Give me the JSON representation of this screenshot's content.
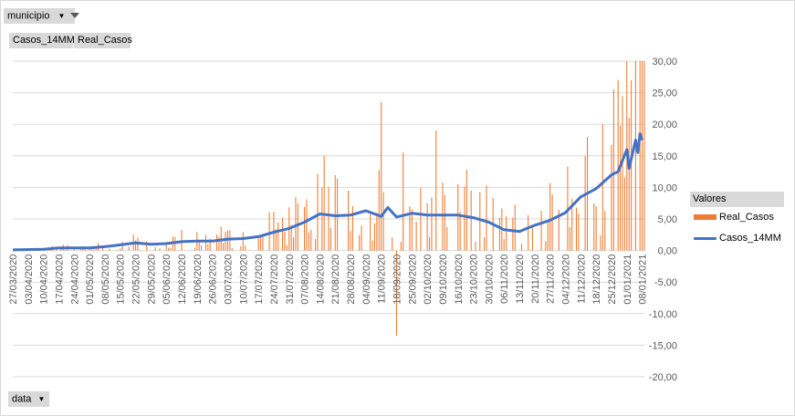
{
  "filters": {
    "municipio_label": "municipio",
    "data_label": "data"
  },
  "value_fields": [
    "Casos_14MM",
    "Real_Casos"
  ],
  "legend": {
    "title": "Valores",
    "items": [
      {
        "label": "Real_Casos",
        "color": "#ED7D31"
      },
      {
        "label": "Casos_14MM",
        "color": "#4472C4"
      }
    ]
  },
  "colors": {
    "bars": "#ED7D31",
    "line": "#4472C4",
    "grid": "#d9d9d9"
  },
  "chart_data": {
    "type": "bar+line",
    "title": "",
    "xlabel": "",
    "ylabel": "",
    "ylim": [
      -20,
      30
    ],
    "yticks": [
      "-20,00",
      "-15,00",
      "-10,00",
      "-5,00",
      "0,00",
      "5,00",
      "10,00",
      "15,00",
      "20,00",
      "25,00",
      "30,00"
    ],
    "ytick_values": [
      -20,
      -15,
      -10,
      -5,
      0,
      5,
      10,
      15,
      20,
      25,
      30
    ],
    "x_start": "27/03/2020",
    "x_end": "09/01/2021",
    "xticks": [
      "27/03/2020",
      "03/04/2020",
      "10/04/2020",
      "17/04/2020",
      "24/04/2020",
      "01/05/2020",
      "08/05/2020",
      "15/05/2020",
      "22/05/2020",
      "29/05/2020",
      "05/06/2020",
      "12/06/2020",
      "19/06/2020",
      "26/06/2020",
      "03/07/2020",
      "10/07/2020",
      "17/07/2020",
      "24/07/2020",
      "31/07/2020",
      "07/08/2020",
      "14/08/2020",
      "21/08/2020",
      "28/08/2020",
      "04/09/2020",
      "11/09/2020",
      "18/09/2020",
      "25/09/2020",
      "02/10/2020",
      "09/10/2020",
      "16/10/2020",
      "23/10/2020",
      "30/10/2020",
      "06/11/2020",
      "13/11/2020",
      "20/11/2020",
      "27/11/2020",
      "04/12/2020",
      "11/12/2020",
      "18/12/2020",
      "25/12/2020",
      "01/01/2021",
      "08/01/2021"
    ],
    "bar_series": {
      "name": "Real_Casos",
      "note_points": [
        [
          "18/09/2020",
          -13.5
        ],
        [
          "11/09/2020",
          23.5
        ],
        [
          "16/08/2020",
          15
        ],
        [
          "06/10/2020",
          19
        ],
        [
          "21/09/2020",
          15.5
        ],
        [
          "14/12/2020",
          18
        ],
        [
          "21/12/2020",
          20
        ],
        [
          "26/12/2020",
          25.5
        ],
        [
          "28/12/2020",
          27
        ],
        [
          "03/01/2021",
          27
        ],
        [
          "05/01/2021",
          30
        ],
        [
          "07/01/2021",
          30
        ]
      ]
    },
    "line_series": {
      "name": "Casos_14MM",
      "points": [
        [
          "27/03/2020",
          0.1
        ],
        [
          "10/04/2020",
          0.2
        ],
        [
          "17/04/2020",
          0.4
        ],
        [
          "01/05/2020",
          0.4
        ],
        [
          "08/05/2020",
          0.6
        ],
        [
          "15/05/2020",
          0.9
        ],
        [
          "22/05/2020",
          1.2
        ],
        [
          "29/05/2020",
          1.0
        ],
        [
          "05/06/2020",
          1.1
        ],
        [
          "12/06/2020",
          1.4
        ],
        [
          "19/06/2020",
          1.5
        ],
        [
          "26/06/2020",
          1.5
        ],
        [
          "03/07/2020",
          1.8
        ],
        [
          "10/07/2020",
          1.9
        ],
        [
          "17/07/2020",
          2.2
        ],
        [
          "24/07/2020",
          2.9
        ],
        [
          "31/07/2020",
          3.5
        ],
        [
          "07/08/2020",
          4.5
        ],
        [
          "14/08/2020",
          5.8
        ],
        [
          "21/08/2020",
          5.5
        ],
        [
          "28/08/2020",
          5.6
        ],
        [
          "04/09/2020",
          6.3
        ],
        [
          "11/09/2020",
          5.4
        ],
        [
          "14/09/2020",
          6.8
        ],
        [
          "18/09/2020",
          5.3
        ],
        [
          "25/09/2020",
          5.9
        ],
        [
          "02/10/2020",
          5.6
        ],
        [
          "09/10/2020",
          5.6
        ],
        [
          "16/10/2020",
          5.6
        ],
        [
          "23/10/2020",
          5.2
        ],
        [
          "30/10/2020",
          4.5
        ],
        [
          "06/11/2020",
          3.3
        ],
        [
          "13/11/2020",
          3.0
        ],
        [
          "20/11/2020",
          4.0
        ],
        [
          "27/11/2020",
          4.8
        ],
        [
          "04/12/2020",
          6.0
        ],
        [
          "11/12/2020",
          8.5
        ],
        [
          "18/12/2020",
          9.8
        ],
        [
          "25/12/2020",
          12.0
        ],
        [
          "28/12/2020",
          12.5
        ],
        [
          "01/01/2021",
          16.0
        ],
        [
          "02/01/2021",
          13.0
        ],
        [
          "05/01/2021",
          17.5
        ],
        [
          "06/01/2021",
          15.5
        ],
        [
          "07/01/2021",
          18.5
        ],
        [
          "08/01/2021",
          17.5
        ]
      ]
    }
  }
}
